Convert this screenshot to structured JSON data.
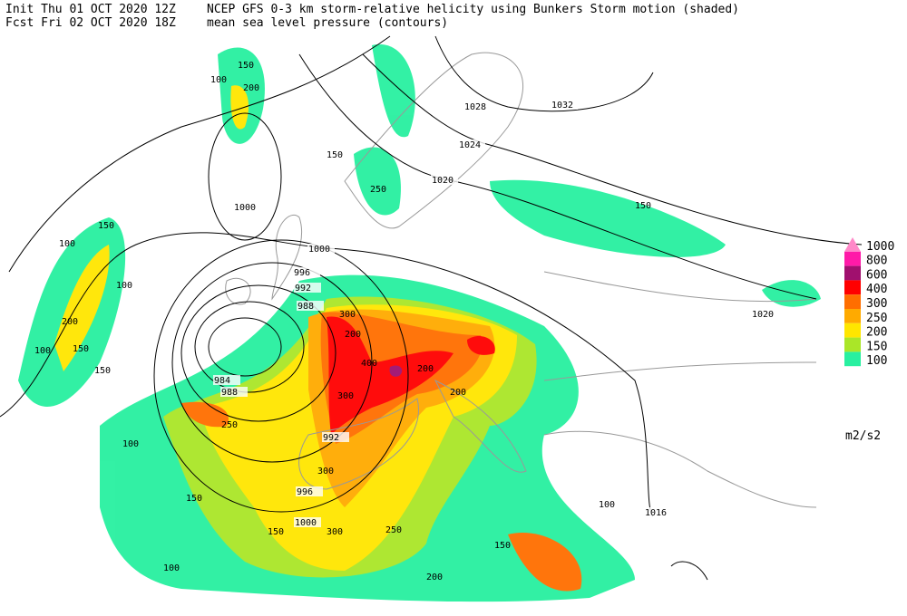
{
  "header": {
    "init": "Init  Thu 01 OCT 2020 12Z",
    "fcst": "Fcst Fri 02 OCT 2020 18Z",
    "title": "NCEP GFS 0-3 km storm-relative helicity using Bunkers Storm motion (shaded)",
    "subtitle": "mean sea level pressure (contours)"
  },
  "legend": {
    "levels": [
      {
        "label": "1000",
        "color": "#ff88c8"
      },
      {
        "label": "800",
        "color": "#ff1aa8"
      },
      {
        "label": "600",
        "color": "#a0106e"
      },
      {
        "label": "400",
        "color": "#ff0000"
      },
      {
        "label": "300",
        "color": "#ff6e00"
      },
      {
        "label": "250",
        "color": "#ffaa00"
      },
      {
        "label": "200",
        "color": "#ffe600"
      },
      {
        "label": "150",
        "color": "#aae628"
      },
      {
        "label": "100",
        "color": "#28f0a0"
      }
    ],
    "units": "m2/s2"
  },
  "contour_labels": [
    "1032",
    "1028",
    "1024",
    "1020",
    "1000",
    "1000",
    "996",
    "992",
    "988",
    "984",
    "988",
    "992",
    "996",
    "1000",
    "1020",
    "1016"
  ],
  "shade_labels": [
    "100",
    "150",
    "100",
    "150",
    "200",
    "100",
    "150",
    "150",
    "100",
    "200",
    "150",
    "250",
    "300",
    "200",
    "400",
    "300",
    "200",
    "250",
    "100",
    "150",
    "300",
    "200",
    "150",
    "100",
    "250",
    "300",
    "200",
    "150",
    "100",
    "150"
  ]
}
